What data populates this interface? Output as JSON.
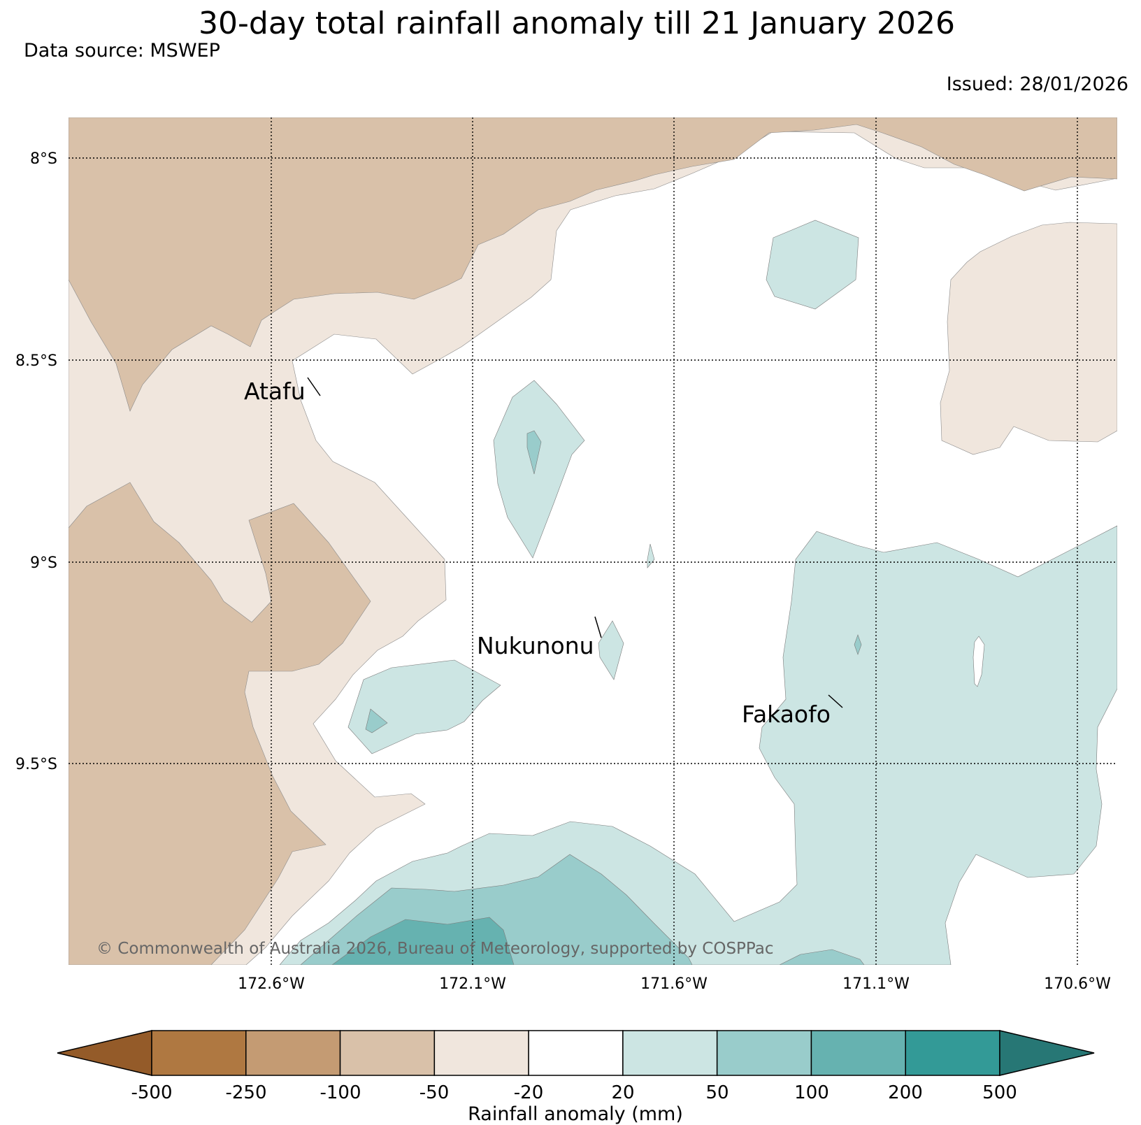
{
  "title": "30-day total rainfall anomaly till 21 January 2026",
  "subtitle": "Data source: MSWEP",
  "issued": "Issued: 28/01/2026",
  "copyright": "© Commonwealth of Australia 2026, Bureau of Meteorology, supported by COSPPac",
  "map": {
    "lon_labels": [
      "172.6°W",
      "172.1°W",
      "171.6°W",
      "171.1°W",
      "170.6°W"
    ],
    "lat_labels": [
      "8°S",
      "8.5°S",
      "9°S",
      "9.5°S"
    ],
    "places": [
      {
        "name": "Atafu"
      },
      {
        "name": "Nukunonu"
      },
      {
        "name": "Fakaofo"
      }
    ]
  },
  "legend": {
    "title": "Rainfall anomaly (mm)",
    "ticks": [
      "-500",
      "-250",
      "-100",
      "-50",
      "-20",
      "20",
      "50",
      "100",
      "200",
      "500"
    ],
    "colors": [
      "#945b29",
      "#af7841",
      "#c49b73",
      "#d9c1a9",
      "#f0e6dd",
      "#ffffff",
      "#cce5e3",
      "#99cccb",
      "#66b2b0",
      "#339a97",
      "#277775"
    ]
  }
}
